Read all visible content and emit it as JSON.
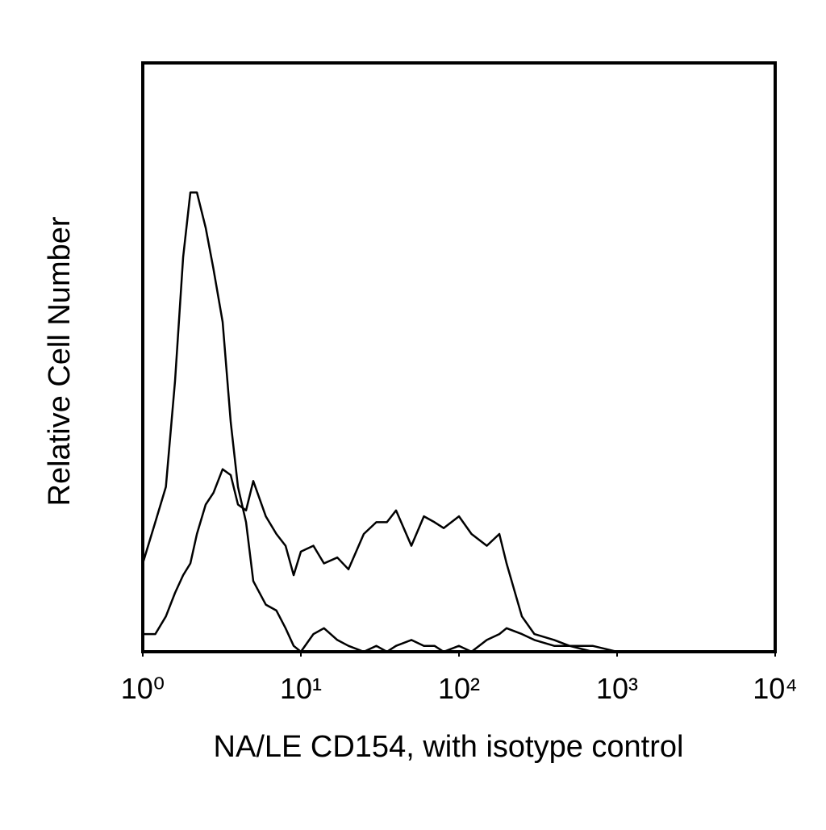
{
  "chart_data": {
    "type": "line",
    "x_label": "NA/LE CD154, with isotype control",
    "y_label": "Relative Cell Number",
    "x": [
      1,
      1.2,
      1.4,
      1.6,
      1.8,
      2,
      2.2,
      2.5,
      2.8,
      3.2,
      3.6,
      4,
      4.5,
      5,
      6,
      7,
      8,
      9,
      10,
      12,
      14,
      17,
      20,
      25,
      30,
      35,
      40,
      50,
      60,
      70,
      80,
      100,
      120,
      150,
      180,
      200,
      250,
      300,
      400,
      500,
      700,
      1000
    ],
    "series": [
      {
        "color": "#000000",
        "values": [
          15,
          22,
          28,
          46,
          67,
          78,
          78,
          72,
          65,
          56,
          39,
          28,
          22,
          12,
          8,
          7,
          4,
          1,
          0,
          3,
          4,
          2,
          1,
          0,
          1,
          0,
          1,
          2,
          1,
          1,
          0,
          1,
          0,
          2,
          3,
          4,
          3,
          2,
          1,
          1,
          0,
          0
        ]
      },
      {
        "color": "#000000",
        "values": [
          3,
          3,
          6,
          10,
          13,
          15,
          20,
          25,
          27,
          31,
          30,
          25,
          24,
          29,
          23,
          20,
          18,
          13,
          17,
          18,
          15,
          16,
          14,
          20,
          22,
          22,
          24,
          18,
          23,
          22,
          21,
          23,
          20,
          18,
          20,
          15,
          6,
          3,
          2,
          1,
          1,
          0
        ]
      }
    ],
    "xlim": [
      1,
      10000
    ],
    "ylim": [
      0,
      100
    ],
    "log_x": true,
    "xticks": [
      {
        "value": 1,
        "label": "10⁰"
      },
      {
        "value": 10,
        "label": "10¹"
      },
      {
        "value": 100,
        "label": "10²"
      },
      {
        "value": 1000,
        "label": "10³"
      },
      {
        "value": 10000,
        "label": "10⁴"
      }
    ]
  }
}
